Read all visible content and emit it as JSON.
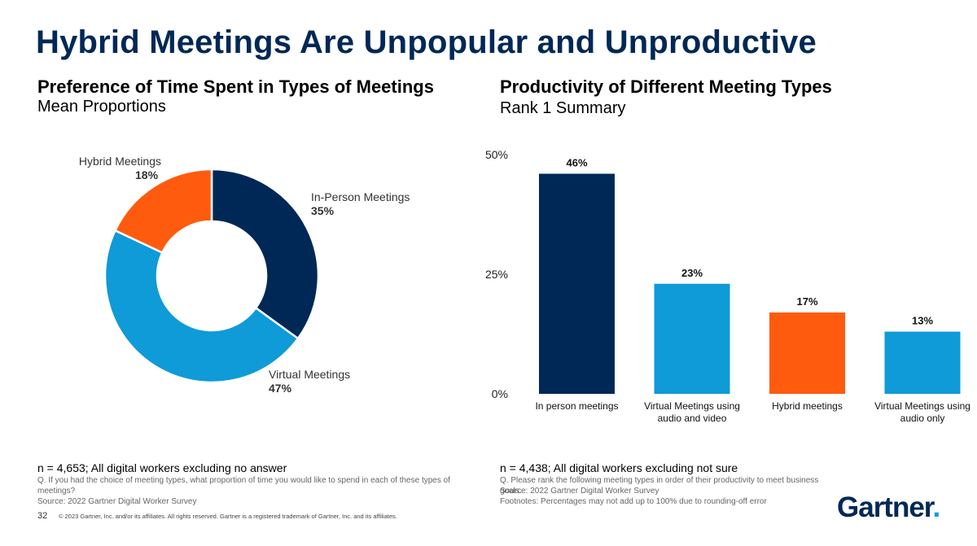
{
  "title": "Hybrid Meetings Are Unpopular and Unproductive",
  "colors": {
    "navy": "#002856",
    "blue": "#0F9AD8",
    "orange": "#FF5B0E"
  },
  "left_panel": {
    "title": "Preference of Time Spent in Types of Meetings",
    "subtitle": "Mean Proportions",
    "labels": [
      {
        "name": "In-Person Meetings",
        "pct": "35%"
      },
      {
        "name": "Virtual Meetings",
        "pct": "47%"
      },
      {
        "name": "Hybrid Meetings",
        "pct": "18%"
      }
    ],
    "sample_note": "n = 4,653; All digital workers excluding no answer",
    "question": "Q. If you had the choice of meeting types, what proportion of time you would like to spend in each of these types of meetings?",
    "source": "Source: 2022 Gartner Digital Worker Survey"
  },
  "right_panel": {
    "title": "Productivity of Different Meeting Types",
    "subtitle": "Rank 1 Summary",
    "sample_note": "n = 4,438; All digital workers excluding not sure",
    "question": "Q. Please rank the following meeting types in order of their productivity to meet business goals.",
    "source": "Source: 2022 Gartner Digital Worker Survey",
    "footnote": "Footnotes: Percentages may not add up to 100% due to rounding-off error"
  },
  "chart_data": [
    {
      "type": "pie",
      "title": "Preference of Time Spent in Types of Meetings",
      "subtitle": "Mean Proportions",
      "categories": [
        "In-Person Meetings",
        "Virtual Meetings",
        "Hybrid Meetings"
      ],
      "values": [
        35,
        47,
        18
      ],
      "colors": [
        "#002856",
        "#0F9AD8",
        "#FF5B0E"
      ],
      "style": "donut"
    },
    {
      "type": "bar",
      "title": "Productivity of Different Meeting Types",
      "subtitle": "Rank 1 Summary",
      "categories": [
        "In person meetings",
        "Virtual Meetings using audio and video",
        "Hybrid meetings",
        "Virtual Meetings using audio only"
      ],
      "category_lines": [
        [
          "In person meetings"
        ],
        [
          "Virtual Meetings using",
          "audio and video"
        ],
        [
          "Hybrid meetings"
        ],
        [
          "Virtual Meetings using",
          "audio only"
        ]
      ],
      "values": [
        46,
        23,
        17,
        13
      ],
      "value_labels": [
        "46%",
        "23%",
        "17%",
        "13%"
      ],
      "colors": [
        "#002856",
        "#0F9AD8",
        "#FF5B0E",
        "#0F9AD8"
      ],
      "yticks": [
        "0%",
        "25%",
        "50%"
      ],
      "ytick_values": [
        0,
        25,
        50
      ],
      "ylim": [
        0,
        50
      ]
    }
  ],
  "footer": {
    "page_number": "32",
    "copyright": "© 2023 Gartner, Inc. and/or its affiliates. All rights reserved. Gartner is a registered trademark of Gartner, Inc. and its affiliates.",
    "logo_text": "Gartner",
    "logo_mark": "."
  }
}
